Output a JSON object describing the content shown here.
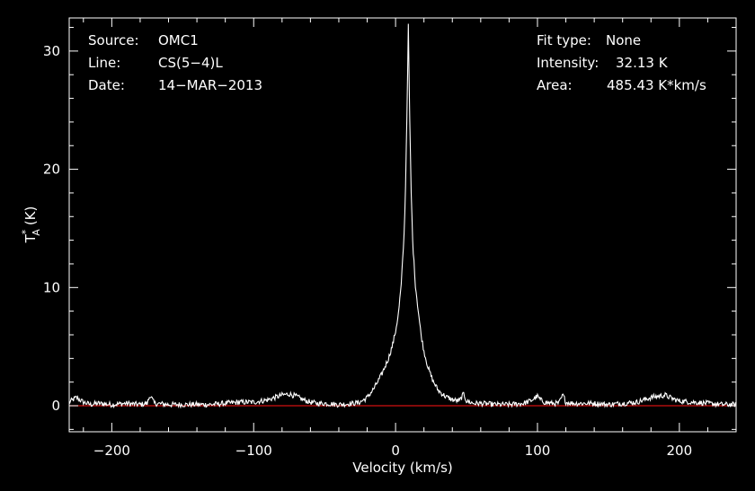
{
  "chart_data": {
    "type": "line",
    "title": "",
    "xlabel": "Velocity (km/s)",
    "ylabel_main": "T",
    "ylabel_sub": "A",
    "ylabel_sup": "*",
    "ylabel_unit": "(K)",
    "xlim": [
      -230,
      240
    ],
    "ylim": [
      -2.2,
      32.8
    ],
    "x_ticks": [
      -200,
      -100,
      0,
      100,
      200
    ],
    "x_tick_labels": [
      "−200",
      "−100",
      "0",
      "100",
      "200"
    ],
    "y_ticks": [
      0,
      10,
      20,
      30
    ],
    "y_tick_labels": [
      "0",
      "10",
      "20",
      "30"
    ],
    "grid": false,
    "colors": {
      "spectrum": "#ffffff",
      "baseline": "#d01010",
      "background": "#000000",
      "axes": "#ffffff"
    },
    "baseline_y": 0,
    "series": [
      {
        "x": [
          -230,
          -225,
          -220,
          -215,
          -210,
          -200,
          -190,
          -180,
          -175,
          -173,
          -170,
          -160,
          -150,
          -140,
          -130,
          -120,
          -110,
          -100,
          -95,
          -90,
          -85,
          -80,
          -75,
          -70,
          -65,
          -60,
          -55,
          -50,
          -40,
          -30,
          -25,
          -20,
          -15,
          -10,
          -5,
          -2,
          0,
          2,
          4,
          6,
          7,
          8,
          9,
          10,
          11,
          12,
          14,
          16,
          18,
          20,
          23,
          26,
          30,
          35,
          40,
          45,
          48,
          50,
          55,
          60,
          70,
          80,
          90,
          95,
          100,
          102,
          105,
          110,
          115,
          118,
          120,
          125,
          130,
          140,
          150,
          160,
          170,
          175,
          180,
          185,
          190,
          195,
          200,
          210,
          220,
          230,
          240
        ],
        "y": [
          0.3,
          0.7,
          0.3,
          0.1,
          0.2,
          0.1,
          0.2,
          0.1,
          0.2,
          0.9,
          0.2,
          0.1,
          0.1,
          0.1,
          0.1,
          0.2,
          0.3,
          0.3,
          0.4,
          0.5,
          0.7,
          0.9,
          1.0,
          0.8,
          0.5,
          0.3,
          0.2,
          0.2,
          0.1,
          0.2,
          0.3,
          0.7,
          1.5,
          2.6,
          4.0,
          5.2,
          6.3,
          7.8,
          10.2,
          14.5,
          18.5,
          24.5,
          32.1,
          24.0,
          18.0,
          14.0,
          10.2,
          8.0,
          6.0,
          4.6,
          3.2,
          2.2,
          1.3,
          0.8,
          0.5,
          0.4,
          1.0,
          0.4,
          0.2,
          0.2,
          0.1,
          0.1,
          0.2,
          0.4,
          0.8,
          0.5,
          0.3,
          0.2,
          0.2,
          0.9,
          0.3,
          0.2,
          0.2,
          0.2,
          0.1,
          0.2,
          0.3,
          0.5,
          0.7,
          0.8,
          0.9,
          0.6,
          0.4,
          0.3,
          0.2,
          0.1,
          0.1
        ]
      }
    ]
  },
  "info": {
    "source_label": "Source:",
    "source_value": "OMC1",
    "line_label": "Line:",
    "line_value": "CS(5−4)L",
    "date_label": "Date:",
    "date_value": "14−MAR−2013",
    "fit_label": "Fit type:",
    "fit_value": "None",
    "intensity_label": "Intensity:",
    "intensity_value": "32.13 K",
    "area_label": "Area:",
    "area_value": "485.43 K*km/s"
  }
}
